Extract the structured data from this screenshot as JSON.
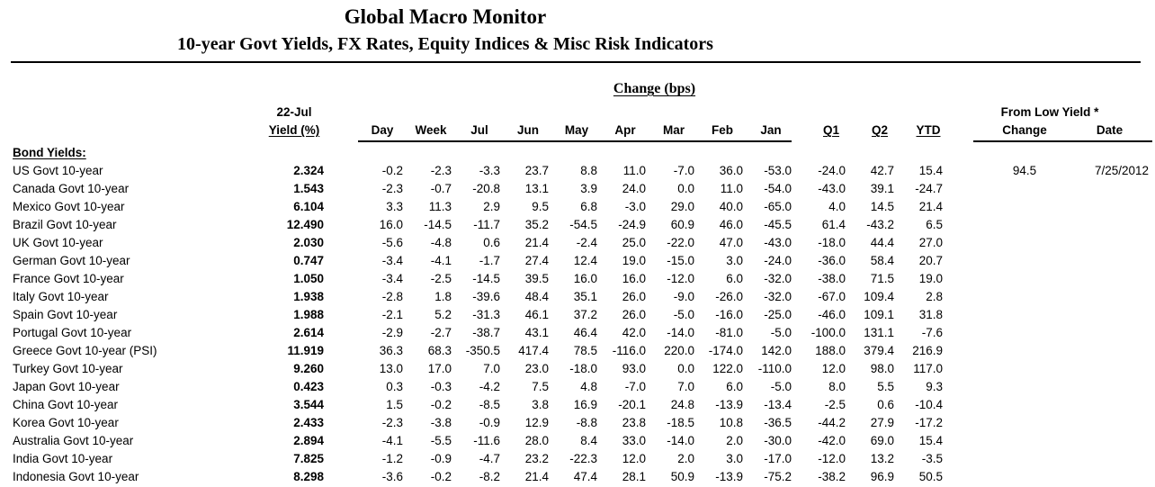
{
  "header": {
    "title": "Global Macro Monitor",
    "subtitle": "10-year Govt Yields, FX Rates, Equity Indices & Misc Risk Indicators"
  },
  "table": {
    "change_header": "Change (bps)",
    "yield_date": "22-Jul",
    "yield_label": "Yield (%)",
    "from_low_header": "From Low Yield *",
    "month_columns": [
      "Day",
      "Week",
      "Jul",
      "Jun",
      "May",
      "Apr",
      "Mar",
      "Feb",
      "Jan"
    ],
    "quarter_columns": [
      "Q1",
      "Q2",
      "YTD"
    ],
    "low_columns": [
      "Change",
      "Date"
    ],
    "section_label": "Bond Yields:",
    "rows": [
      {
        "label": "US Govt 10-year",
        "yield": "2.324",
        "changes": [
          "-0.2",
          "-2.3",
          "-3.3",
          "23.7",
          "8.8",
          "11.0",
          "-7.0",
          "36.0",
          "-53.0"
        ],
        "q1": "-24.0",
        "q2": "42.7",
        "ytd": "15.4",
        "low_change": "94.5",
        "low_date": "7/25/2012"
      },
      {
        "label": "Canada Govt 10-year",
        "yield": "1.543",
        "changes": [
          "-2.3",
          "-0.7",
          "-20.8",
          "13.1",
          "3.9",
          "24.0",
          "0.0",
          "11.0",
          "-54.0"
        ],
        "q1": "-43.0",
        "q2": "39.1",
        "ytd": "-24.7"
      },
      {
        "label": "Mexico Govt 10-year",
        "yield": "6.104",
        "changes": [
          "3.3",
          "11.3",
          "2.9",
          "9.5",
          "6.8",
          "-3.0",
          "29.0",
          "40.0",
          "-65.0"
        ],
        "q1": "4.0",
        "q2": "14.5",
        "ytd": "21.4"
      },
      {
        "label": "Brazil Govt 10-year",
        "yield": "12.490",
        "changes": [
          "16.0",
          "-14.5",
          "-11.7",
          "35.2",
          "-54.5",
          "-24.9",
          "60.9",
          "46.0",
          "-45.5"
        ],
        "q1": "61.4",
        "q2": "-43.2",
        "ytd": "6.5"
      },
      {
        "label": "UK Govt 10-year",
        "yield": "2.030",
        "changes": [
          "-5.6",
          "-4.8",
          "0.6",
          "21.4",
          "-2.4",
          "25.0",
          "-22.0",
          "47.0",
          "-43.0"
        ],
        "q1": "-18.0",
        "q2": "44.4",
        "ytd": "27.0"
      },
      {
        "label": "German Govt 10-year",
        "yield": "0.747",
        "changes": [
          "-3.4",
          "-4.1",
          "-1.7",
          "27.4",
          "12.4",
          "19.0",
          "-15.0",
          "3.0",
          "-24.0"
        ],
        "q1": "-36.0",
        "q2": "58.4",
        "ytd": "20.7"
      },
      {
        "label": "France Govt 10-year",
        "yield": "1.050",
        "changes": [
          "-3.4",
          "-2.5",
          "-14.5",
          "39.5",
          "16.0",
          "16.0",
          "-12.0",
          "6.0",
          "-32.0"
        ],
        "q1": "-38.0",
        "q2": "71.5",
        "ytd": "19.0"
      },
      {
        "label": "Italy Govt 10-year",
        "yield": "1.938",
        "changes": [
          "-2.8",
          "1.8",
          "-39.6",
          "48.4",
          "35.1",
          "26.0",
          "-9.0",
          "-26.0",
          "-32.0"
        ],
        "q1": "-67.0",
        "q2": "109.4",
        "ytd": "2.8"
      },
      {
        "label": "Spain Govt 10-year",
        "yield": "1.988",
        "changes": [
          "-2.1",
          "5.2",
          "-31.3",
          "46.1",
          "37.2",
          "26.0",
          "-5.0",
          "-16.0",
          "-25.0"
        ],
        "q1": "-46.0",
        "q2": "109.1",
        "ytd": "31.8"
      },
      {
        "label": "Portugal Govt 10-year",
        "yield": "2.614",
        "changes": [
          "-2.9",
          "-2.7",
          "-38.7",
          "43.1",
          "46.4",
          "42.0",
          "-14.0",
          "-81.0",
          "-5.0"
        ],
        "q1": "-100.0",
        "q2": "131.1",
        "ytd": "-7.6"
      },
      {
        "label": "Greece Govt 10-year (PSI)",
        "yield": "11.919",
        "changes": [
          "36.3",
          "68.3",
          "-350.5",
          "417.4",
          "78.5",
          "-116.0",
          "220.0",
          "-174.0",
          "142.0"
        ],
        "q1": "188.0",
        "q2": "379.4",
        "ytd": "216.9"
      },
      {
        "label": "Turkey Govt 10-year",
        "yield": "9.260",
        "changes": [
          "13.0",
          "17.0",
          "7.0",
          "23.0",
          "-18.0",
          "93.0",
          "0.0",
          "122.0",
          "-110.0"
        ],
        "q1": "12.0",
        "q2": "98.0",
        "ytd": "117.0"
      },
      {
        "label": "Japan Govt 10-year",
        "yield": "0.423",
        "changes": [
          "0.3",
          "-0.3",
          "-4.2",
          "7.5",
          "4.8",
          "-7.0",
          "7.0",
          "6.0",
          "-5.0"
        ],
        "q1": "8.0",
        "q2": "5.5",
        "ytd": "9.3"
      },
      {
        "label": "China Govt 10-year",
        "yield": "3.544",
        "changes": [
          "1.5",
          "-0.2",
          "-8.5",
          "3.8",
          "16.9",
          "-20.1",
          "24.8",
          "-13.9",
          "-13.4"
        ],
        "q1": "-2.5",
        "q2": "0.6",
        "ytd": "-10.4"
      },
      {
        "label": "Korea Govt 10-year",
        "yield": "2.433",
        "changes": [
          "-2.3",
          "-3.8",
          "-0.9",
          "12.9",
          "-8.8",
          "23.8",
          "-18.5",
          "10.8",
          "-36.5"
        ],
        "q1": "-44.2",
        "q2": "27.9",
        "ytd": "-17.2"
      },
      {
        "label": "Australia Govt 10-year",
        "yield": "2.894",
        "changes": [
          "-4.1",
          "-5.5",
          "-11.6",
          "28.0",
          "8.4",
          "33.0",
          "-14.0",
          "2.0",
          "-30.0"
        ],
        "q1": "-42.0",
        "q2": "69.0",
        "ytd": "15.4"
      },
      {
        "label": "India Govt 10-year",
        "yield": "7.825",
        "changes": [
          "-1.2",
          "-0.9",
          "-4.7",
          "23.2",
          "-22.3",
          "12.0",
          "2.0",
          "3.0",
          "-17.0"
        ],
        "q1": "-12.0",
        "q2": "13.2",
        "ytd": "-3.5"
      },
      {
        "label": "Indonesia Govt 10-year",
        "yield": "8.298",
        "changes": [
          "-3.6",
          "-0.2",
          "-8.2",
          "21.4",
          "47.4",
          "28.1",
          "50.9",
          "-13.9",
          "-75.2"
        ],
        "q1": "-38.2",
        "q2": "96.9",
        "ytd": "50.5"
      }
    ]
  }
}
